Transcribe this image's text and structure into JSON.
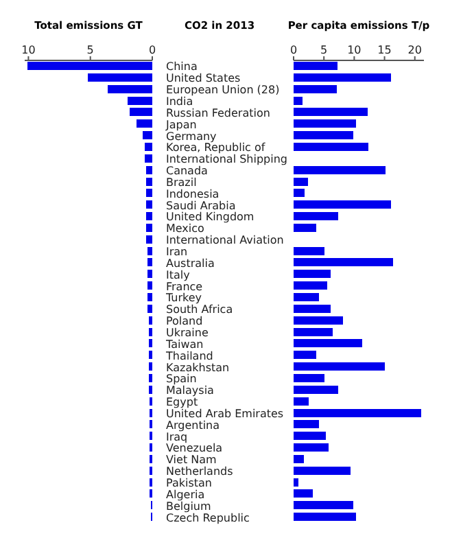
{
  "chart_data": [
    {
      "type": "bar",
      "orientation": "horizontal",
      "xlabel": "Total emissions GT",
      "grid": false,
      "legend": false,
      "categories": [
        "China",
        "United States",
        "European Union (28)",
        "India",
        "Russian Federation",
        "Japan",
        "Germany",
        "Korea, Republic of",
        "International Shipping",
        "Canada",
        "Brazil",
        "Indonesia",
        "Saudi Arabia",
        "United Kingdom",
        "Mexico",
        "International Aviation",
        "Iran",
        "Australia",
        "Italy",
        "France",
        "Turkey",
        "South Africa",
        "Poland",
        "Ukraine",
        "Taiwan",
        "Thailand",
        "Kazakhstan",
        "Spain",
        "Malaysia",
        "Egypt",
        "United Arab Emirates",
        "Argentina",
        "Iraq",
        "Venezuela",
        "Viet Nam",
        "Netherlands",
        "Pakistan",
        "Algeria",
        "Belgium",
        "Czech Republic"
      ],
      "values": [
        10.1,
        5.2,
        3.6,
        2.0,
        1.8,
        1.3,
        0.8,
        0.6,
        0.6,
        0.5,
        0.5,
        0.5,
        0.5,
        0.5,
        0.5,
        0.5,
        0.4,
        0.4,
        0.4,
        0.4,
        0.4,
        0.4,
        0.3,
        0.3,
        0.3,
        0.3,
        0.3,
        0.3,
        0.3,
        0.2,
        0.2,
        0.2,
        0.2,
        0.2,
        0.2,
        0.2,
        0.2,
        0.2,
        0.1,
        0.1
      ],
      "color": "#0000ee",
      "xlim": [
        10.3,
        0
      ],
      "xticks": [
        10,
        5,
        0
      ]
    },
    {
      "type": "bar",
      "orientation": "horizontal",
      "title": "CO2 in 2013",
      "xlabel": "Per capita emissions T/p",
      "tick_labels": "x",
      "grid": false,
      "legend": false,
      "categories": [
        null,
        null,
        null,
        null,
        null,
        null,
        null,
        null,
        null,
        null,
        null,
        null,
        null,
        null,
        null,
        null,
        null,
        null,
        null,
        null,
        null,
        null,
        null,
        null,
        null,
        null,
        null,
        null,
        null,
        null,
        null,
        null,
        null,
        null,
        null,
        null,
        null,
        null,
        null,
        null
      ],
      "values": [
        7.2,
        16.1,
        7.1,
        1.5,
        12.2,
        10.3,
        9.8,
        12.3,
        null,
        15.2,
        2.4,
        1.8,
        16.1,
        7.3,
        3.7,
        null,
        5.1,
        16.4,
        6.1,
        5.5,
        4.2,
        6.1,
        8.2,
        6.5,
        11.3,
        3.7,
        15.0,
        5.1,
        7.4,
        2.5,
        21.1,
        4.2,
        5.3,
        5.8,
        1.7,
        9.4,
        0.8,
        3.2,
        9.9,
        10.3
      ],
      "color": "#0000ee",
      "xlim": [
        0,
        21.5
      ],
      "xticks": [
        0,
        5,
        10,
        15,
        20
      ]
    }
  ]
}
